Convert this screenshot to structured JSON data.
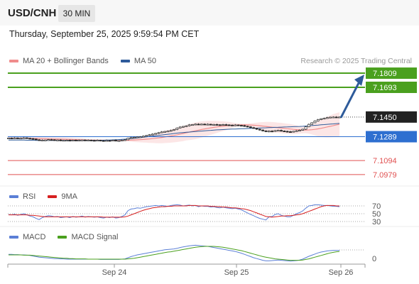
{
  "header": {
    "pair": "USD/CNH",
    "timeframe": "30 MIN",
    "datetime": "Thursday, September 25, 2025 9:59:54 PM CET",
    "credit": "Research © 2025 Trading Central"
  },
  "legends": {
    "price": [
      {
        "label": "MA 20 + Bollinger Bands",
        "color": "#f08c8c"
      },
      {
        "label": "MA 50",
        "color": "#2e5b9a"
      }
    ],
    "rsi": [
      {
        "label": "RSI",
        "color": "#5b7fd6"
      },
      {
        "label": "9MA",
        "color": "#d62020"
      }
    ],
    "macd": [
      {
        "label": "MACD",
        "color": "#5b7fd6"
      },
      {
        "label": "MACD Signal",
        "color": "#4aa01e"
      }
    ]
  },
  "colors": {
    "target": "#4aa01e",
    "pivot": "#2e6fd0",
    "support": "#e05050",
    "current": "#222222",
    "arrow": "#2e5b9a",
    "candle": "#2a2a2a"
  },
  "chart_data": {
    "type": "candlestick",
    "x_labels": [
      "Sep 24",
      "Sep 25",
      "Sep 26"
    ],
    "y_range": [
      7.092,
      7.185
    ],
    "levels": [
      {
        "label": "7.1809",
        "value": 7.1809,
        "kind": "target"
      },
      {
        "label": "7.1693",
        "value": 7.1693,
        "kind": "target"
      },
      {
        "label": "7.1450",
        "value": 7.145,
        "kind": "current"
      },
      {
        "label": "7.1289",
        "value": 7.1289,
        "kind": "pivot"
      },
      {
        "label": "7.1094",
        "value": 7.1094,
        "kind": "support"
      },
      {
        "label": "7.0979",
        "value": 7.0979,
        "kind": "support"
      }
    ],
    "closes": [
      7.1278,
      7.1276,
      7.1279,
      7.1274,
      7.1277,
      7.128,
      7.1276,
      7.1273,
      7.127,
      7.1264,
      7.1258,
      7.1261,
      7.1262,
      7.1265,
      7.1264,
      7.1261,
      7.1262,
      7.1258,
      7.1259,
      7.126,
      7.1257,
      7.1261,
      7.1258,
      7.126,
      7.1262,
      7.1258,
      7.1261,
      7.1259,
      7.1258,
      7.126,
      7.1257,
      7.1255,
      7.1258,
      7.1257,
      7.126,
      7.1256,
      7.1257,
      7.126,
      7.1264,
      7.1276,
      7.1282,
      7.1284,
      7.1287,
      7.1288,
      7.1293,
      7.1299,
      7.1305,
      7.131,
      7.1316,
      7.1322,
      7.1328,
      7.1332,
      7.1335,
      7.134,
      7.1348,
      7.136,
      7.1368,
      7.1373,
      7.1378,
      7.1386,
      7.1388,
      7.1392,
      7.1389,
      7.1392,
      7.139,
      7.1391,
      7.1388,
      7.1389,
      7.1387,
      7.1385,
      7.1388,
      7.1386,
      7.1384,
      7.1383,
      7.1385,
      7.1382,
      7.138,
      7.1375,
      7.137,
      7.1363,
      7.1358,
      7.135,
      7.1343,
      7.1337,
      7.133,
      7.1335,
      7.1334,
      7.1339,
      7.1341,
      7.1336,
      7.1333,
      7.133,
      7.1329,
      7.1333,
      7.1338,
      7.1342,
      7.135,
      7.137,
      7.139,
      7.1403,
      7.1418,
      7.1428,
      7.1436,
      7.144,
      7.1445,
      7.1449,
      7.145,
      7.1449,
      7.145
    ],
    "ma50": [
      7.1262,
      7.1262,
      7.1262,
      7.1261,
      7.1261,
      7.1261,
      7.126,
      7.126,
      7.126,
      7.1259,
      7.1259,
      7.1259,
      7.1259,
      7.1259,
      7.1258,
      7.1258,
      7.1258,
      7.1258,
      7.1258,
      7.1258,
      7.1258,
      7.1258,
      7.1258,
      7.1258,
      7.1258,
      7.1258,
      7.1259,
      7.1259,
      7.1259,
      7.1259,
      7.126,
      7.126,
      7.1261,
      7.1262,
      7.1263,
      7.1264,
      7.1265,
      7.1267,
      7.1269,
      7.1271,
      7.1273,
      7.1276,
      7.1279,
      7.1282,
      7.1285,
      7.1288,
      7.1291,
      7.1294,
      7.1297,
      7.13,
      7.1303,
      7.1306,
      7.1309,
      7.1312,
      7.1315,
      7.1318,
      7.1321,
      7.1323,
      7.1325,
      7.1327,
      7.1329,
      7.1331,
      7.1333,
      7.1335,
      7.1337,
      7.1339,
      7.1341,
      7.1343,
      7.1345,
      7.1346,
      7.1347,
      7.1349,
      7.135,
      7.1351,
      7.1352,
      7.1353,
      7.1354,
      7.1355,
      7.1356,
      7.1357,
      7.1358,
      7.1359,
      7.136,
      7.1361,
      7.1362,
      7.1363,
      7.1364,
      7.1365,
      7.1366,
      7.1367,
      7.1368,
      7.1369,
      7.137,
      7.1371,
      7.1372,
      7.1373,
      7.1374,
      7.1376,
      7.1378,
      7.138,
      7.1382,
      7.1384,
      7.1386,
      7.1388,
      7.139,
      7.1392,
      7.1394,
      7.1396,
      7.1398
    ],
    "rsi": [
      48,
      47,
      49,
      46,
      48,
      50,
      47,
      44,
      42,
      38,
      35,
      40,
      43,
      45,
      44,
      42,
      43,
      40,
      41,
      42,
      40,
      43,
      41,
      42,
      44,
      41,
      43,
      42,
      41,
      42,
      40,
      39,
      41,
      40,
      42,
      39,
      40,
      43,
      47,
      58,
      62,
      63,
      65,
      64,
      66,
      68,
      69,
      70,
      71,
      70,
      71,
      70,
      69,
      71,
      72,
      73,
      72,
      70,
      71,
      72,
      70,
      71,
      68,
      70,
      69,
      69,
      67,
      68,
      66,
      65,
      67,
      65,
      64,
      63,
      64,
      62,
      60,
      56,
      52,
      48,
      45,
      41,
      38,
      36,
      34,
      42,
      43,
      48,
      50,
      46,
      44,
      42,
      42,
      46,
      50,
      53,
      57,
      64,
      70,
      71,
      73,
      73,
      72,
      71,
      71,
      70,
      69,
      69,
      68
    ],
    "rsi9ma": [
      47,
      47,
      47,
      47,
      47,
      47,
      47,
      46,
      46,
      45,
      44,
      43,
      42,
      42,
      42,
      42,
      42,
      42,
      42,
      42,
      42,
      42,
      42,
      42,
      42,
      42,
      42,
      42,
      42,
      42,
      42,
      41,
      41,
      41,
      41,
      41,
      41,
      41,
      42,
      44,
      47,
      50,
      53,
      56,
      59,
      61,
      63,
      65,
      66,
      67,
      68,
      68,
      69,
      69,
      70,
      70,
      70,
      70,
      70,
      71,
      71,
      71,
      70,
      70,
      70,
      70,
      69,
      69,
      68,
      68,
      67,
      67,
      66,
      65,
      65,
      64,
      63,
      62,
      60,
      58,
      55,
      52,
      49,
      46,
      43,
      42,
      41,
      42,
      43,
      44,
      44,
      45,
      45,
      46,
      47,
      48,
      50,
      53,
      56,
      59,
      62,
      65,
      68,
      70,
      71,
      71,
      71,
      70,
      70
    ],
    "macd": [
      12,
      12,
      11,
      11,
      10,
      10,
      9,
      8,
      6,
      4,
      2,
      1,
      0,
      -1,
      -2,
      -3,
      -3,
      -4,
      -4,
      -5,
      -5,
      -5,
      -5,
      -5,
      -5,
      -5,
      -5,
      -5,
      -5,
      -5,
      -6,
      -6,
      -6,
      -6,
      -6,
      -6,
      -6,
      -5,
      -4,
      0,
      4,
      7,
      10,
      12,
      14,
      16,
      18,
      20,
      22,
      24,
      26,
      28,
      29,
      30,
      31,
      33,
      36,
      38,
      40,
      42,
      43,
      44,
      43,
      42,
      41,
      40,
      38,
      36,
      34,
      32,
      30,
      28,
      26,
      24,
      22,
      19,
      16,
      12,
      8,
      4,
      0,
      -3,
      -6,
      -9,
      -11,
      -11,
      -10,
      -9,
      -8,
      -9,
      -10,
      -11,
      -12,
      -11,
      -10,
      -8,
      -5,
      0,
      5,
      9,
      13,
      17,
      20,
      22,
      24,
      25,
      26,
      26,
      26
    ],
    "macd_signal": [
      10,
      10,
      10,
      10,
      10,
      9,
      9,
      9,
      8,
      7,
      6,
      5,
      4,
      3,
      2,
      1,
      0,
      -1,
      -2,
      -2,
      -3,
      -3,
      -4,
      -4,
      -4,
      -4,
      -5,
      -5,
      -5,
      -5,
      -5,
      -5,
      -5,
      -5,
      -5,
      -5,
      -5,
      -5,
      -5,
      -4,
      -3,
      -2,
      0,
      2,
      4,
      6,
      8,
      10,
      12,
      14,
      16,
      18,
      20,
      21,
      23,
      25,
      27,
      29,
      31,
      33,
      35,
      37,
      38,
      39,
      40,
      40,
      40,
      40,
      39,
      38,
      37,
      35,
      33,
      31,
      29,
      27,
      25,
      22,
      19,
      16,
      13,
      10,
      7,
      4,
      2,
      0,
      -2,
      -4,
      -5,
      -6,
      -7,
      -8,
      -9,
      -9,
      -9,
      -9,
      -8,
      -6,
      -4,
      -1,
      2,
      5,
      8,
      11,
      14,
      17,
      19,
      21,
      22
    ],
    "rsi_levels": [
      70,
      50,
      30
    ],
    "macd_zero": "0"
  }
}
